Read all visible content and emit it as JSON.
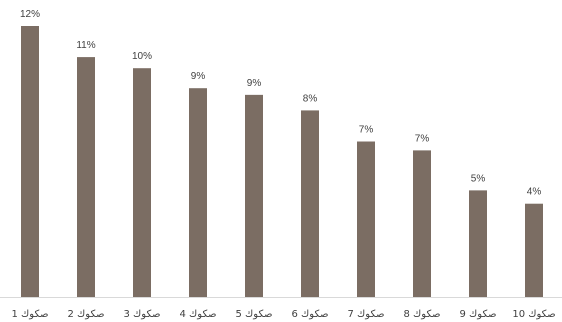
{
  "chart_data": {
    "type": "bar",
    "title": "",
    "xlabel": "",
    "ylabel": "",
    "categories": [
      "صكوك 1",
      "صكوك 2",
      "صكوك 3",
      "صكوك 4",
      "صكوك 5",
      "صكوك 6",
      "صكوك 7",
      "صكوك 8",
      "صكوك 9",
      "صكوك 10"
    ],
    "values": [
      12.2,
      10.8,
      10.3,
      9.4,
      9.1,
      8.4,
      7.0,
      6.6,
      4.8,
      4.2
    ],
    "data_labels": [
      "12%",
      "11%",
      "10%",
      "9%",
      "9%",
      "8%",
      "7%",
      "7%",
      "5%",
      "4%"
    ],
    "ylim": [
      0,
      12.2
    ],
    "grid": false,
    "legend": "none",
    "colors": {
      "bar": "#7b6d63",
      "axis": "#d9d9d9",
      "text": "#404040"
    }
  }
}
